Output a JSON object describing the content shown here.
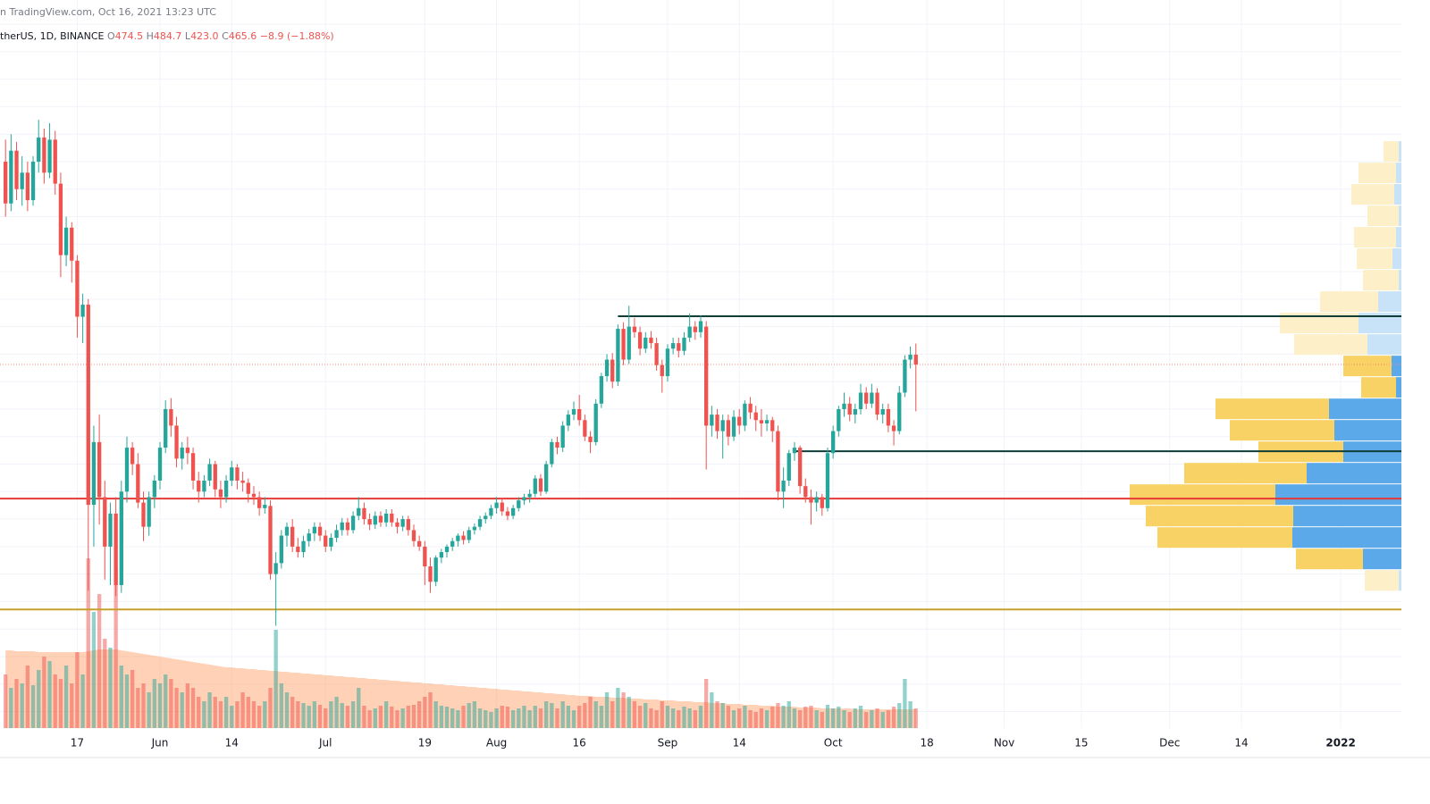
{
  "header": {
    "published": "n TradingView.com, Oct 16, 2021 13:23 UTC",
    "symbol": "therUS, 1D, BINANCE",
    "ohlc": [
      {
        "label": "O",
        "value": "474.5"
      },
      {
        "label": "H",
        "value": "484.7"
      },
      {
        "label": "L",
        "value": "423.0"
      },
      {
        "label": "C",
        "value": "465.6"
      }
    ],
    "change": "−8.9 (−1.88%)"
  },
  "chart_data": {
    "type": "candlestick",
    "xlim": [
      -1,
      253
    ],
    "ylim": [
      135,
      797
    ],
    "xticks": [
      {
        "value": 13,
        "label": "17"
      },
      {
        "value": 28,
        "label": "Jun"
      },
      {
        "value": 41,
        "label": "14"
      },
      {
        "value": 58,
        "label": "Jul"
      },
      {
        "value": 76,
        "label": "19"
      },
      {
        "value": 89,
        "label": "Aug"
      },
      {
        "value": 104,
        "label": "16"
      },
      {
        "value": 120,
        "label": "Sep"
      },
      {
        "value": 133,
        "label": "14"
      },
      {
        "value": 150,
        "label": "Oct"
      },
      {
        "value": 167,
        "label": "18"
      },
      {
        "value": 181,
        "label": "Nov"
      },
      {
        "value": 195,
        "label": "15"
      },
      {
        "value": 211,
        "label": "Dec"
      },
      {
        "value": 224,
        "label": "14"
      },
      {
        "value": 242,
        "label": "2022"
      }
    ],
    "ygrid": [
      150,
      175,
      200,
      225,
      250,
      275,
      300,
      325,
      350,
      375,
      400,
      425,
      450,
      475,
      500,
      525,
      550,
      575,
      600,
      625,
      650,
      675,
      700,
      725,
      750,
      775
    ],
    "grid": true,
    "up_color": "#26a69a",
    "down_color": "#ef5350",
    "candles": [
      [
        650,
        670,
        600,
        612
      ],
      [
        612,
        675,
        605,
        660
      ],
      [
        660,
        668,
        615,
        625
      ],
      [
        625,
        655,
        610,
        640
      ],
      [
        640,
        650,
        605,
        615
      ],
      [
        615,
        655,
        610,
        650
      ],
      [
        650,
        688,
        640,
        672
      ],
      [
        672,
        680,
        630,
        640
      ],
      [
        640,
        685,
        635,
        670
      ],
      [
        670,
        678,
        620,
        630
      ],
      [
        630,
        640,
        545,
        565
      ],
      [
        565,
        600,
        555,
        590
      ],
      [
        590,
        595,
        540,
        560
      ],
      [
        560,
        565,
        490,
        509
      ],
      [
        509,
        530,
        485,
        520
      ],
      [
        520,
        525,
        260,
        338
      ],
      [
        338,
        410,
        300,
        395
      ],
      [
        395,
        420,
        320,
        345
      ],
      [
        345,
        360,
        270,
        300
      ],
      [
        300,
        340,
        265,
        330
      ],
      [
        330,
        345,
        255,
        265
      ],
      [
        265,
        360,
        258,
        350
      ],
      [
        350,
        400,
        340,
        390
      ],
      [
        390,
        395,
        365,
        375
      ],
      [
        375,
        385,
        335,
        340
      ],
      [
        340,
        350,
        305,
        318
      ],
      [
        318,
        350,
        310,
        345
      ],
      [
        345,
        365,
        335,
        360
      ],
      [
        360,
        395,
        352,
        390
      ],
      [
        390,
        433,
        385,
        425
      ],
      [
        425,
        435,
        400,
        410
      ],
      [
        410,
        418,
        372,
        380
      ],
      [
        380,
        395,
        370,
        390
      ],
      [
        390,
        400,
        375,
        385
      ],
      [
        385,
        390,
        352,
        360
      ],
      [
        360,
        368,
        340,
        350
      ],
      [
        350,
        365,
        345,
        360
      ],
      [
        360,
        380,
        355,
        375
      ],
      [
        375,
        378,
        345,
        352
      ],
      [
        352,
        360,
        335,
        345
      ],
      [
        345,
        365,
        340,
        360
      ],
      [
        360,
        378,
        355,
        372
      ],
      [
        372,
        375,
        352,
        360
      ],
      [
        360,
        368,
        350,
        358
      ],
      [
        358,
        362,
        340,
        348
      ],
      [
        348,
        355,
        338,
        345
      ],
      [
        345,
        350,
        328,
        335
      ],
      [
        335,
        345,
        330,
        338
      ],
      [
        337,
        342,
        270,
        275
      ],
      [
        275,
        295,
        228,
        285
      ],
      [
        285,
        315,
        280,
        310
      ],
      [
        310,
        322,
        300,
        318
      ],
      [
        318,
        325,
        295,
        300
      ],
      [
        300,
        308,
        290,
        295
      ],
      [
        295,
        310,
        290,
        305
      ],
      [
        305,
        316,
        300,
        312
      ],
      [
        312,
        322,
        305,
        318
      ],
      [
        318,
        322,
        305,
        310
      ],
      [
        310,
        315,
        295,
        300
      ],
      [
        300,
        312,
        296,
        308
      ],
      [
        308,
        320,
        304,
        315
      ],
      [
        315,
        326,
        310,
        322
      ],
      [
        322,
        326,
        310,
        315
      ],
      [
        315,
        332,
        312,
        328
      ],
      [
        328,
        345,
        324,
        335
      ],
      [
        335,
        340,
        320,
        325
      ],
      [
        325,
        330,
        315,
        320
      ],
      [
        320,
        332,
        316,
        328
      ],
      [
        328,
        332,
        318,
        322
      ],
      [
        322,
        334,
        318,
        330
      ],
      [
        330,
        334,
        318,
        322
      ],
      [
        322,
        326,
        312,
        318
      ],
      [
        318,
        328,
        314,
        325
      ],
      [
        325,
        328,
        310,
        315
      ],
      [
        315,
        320,
        300,
        305
      ],
      [
        305,
        310,
        296,
        300
      ],
      [
        300,
        305,
        265,
        282
      ],
      [
        282,
        290,
        258,
        268
      ],
      [
        268,
        292,
        264,
        290
      ],
      [
        290,
        298,
        285,
        295
      ],
      [
        295,
        302,
        290,
        300
      ],
      [
        300,
        308,
        296,
        305
      ],
      [
        305,
        312,
        300,
        310
      ],
      [
        310,
        314,
        302,
        306
      ],
      [
        306,
        318,
        303,
        315
      ],
      [
        315,
        321,
        311,
        318
      ],
      [
        318,
        328,
        315,
        325
      ],
      [
        325,
        331,
        321,
        328
      ],
      [
        328,
        338,
        325,
        335
      ],
      [
        335,
        345,
        330,
        340
      ],
      [
        340,
        344,
        328,
        332
      ],
      [
        332,
        336,
        324,
        328
      ],
      [
        328,
        338,
        325,
        335
      ],
      [
        335,
        345,
        332,
        342
      ],
      [
        342,
        348,
        338,
        345
      ],
      [
        345,
        352,
        340,
        348
      ],
      [
        348,
        365,
        345,
        362
      ],
      [
        362,
        366,
        346,
        350
      ],
      [
        350,
        378,
        348,
        375
      ],
      [
        375,
        398,
        372,
        395
      ],
      [
        395,
        400,
        384,
        390
      ],
      [
        390,
        414,
        386,
        410
      ],
      [
        410,
        424,
        405,
        420
      ],
      [
        420,
        432,
        415,
        425
      ],
      [
        425,
        438,
        410,
        415
      ],
      [
        415,
        420,
        396,
        400
      ],
      [
        400,
        405,
        385,
        395
      ],
      [
        395,
        434,
        392,
        430
      ],
      [
        430,
        458,
        426,
        455
      ],
      [
        455,
        475,
        450,
        470
      ],
      [
        470,
        476,
        444,
        450
      ],
      [
        450,
        502,
        446,
        498
      ],
      [
        498,
        504,
        465,
        470
      ],
      [
        470,
        519,
        466,
        500
      ],
      [
        500,
        508,
        490,
        495
      ],
      [
        495,
        500,
        474,
        480
      ],
      [
        480,
        495,
        476,
        490
      ],
      [
        490,
        496,
        480,
        485
      ],
      [
        485,
        490,
        460,
        465
      ],
      [
        465,
        470,
        440,
        455
      ],
      [
        455,
        484,
        450,
        480
      ],
      [
        480,
        490,
        475,
        485
      ],
      [
        485,
        490,
        472,
        478
      ],
      [
        478,
        495,
        474,
        490
      ],
      [
        490,
        512,
        486,
        500
      ],
      [
        500,
        505,
        488,
        495
      ],
      [
        495,
        510,
        490,
        505
      ],
      [
        500,
        505,
        370,
        410
      ],
      [
        410,
        428,
        400,
        420
      ],
      [
        420,
        425,
        398,
        405
      ],
      [
        405,
        420,
        380,
        415
      ],
      [
        415,
        420,
        392,
        400
      ],
      [
        400,
        424,
        396,
        418
      ],
      [
        418,
        425,
        402,
        410
      ],
      [
        410,
        433,
        405,
        430
      ],
      [
        430,
        436,
        416,
        422
      ],
      [
        422,
        428,
        405,
        415
      ],
      [
        415,
        425,
        400,
        412
      ],
      [
        412,
        420,
        405,
        415
      ],
      [
        415,
        418,
        395,
        405
      ],
      [
        405,
        410,
        342,
        350
      ],
      [
        350,
        372,
        335,
        360
      ],
      [
        360,
        388,
        355,
        385
      ],
      [
        385,
        395,
        378,
        390
      ],
      [
        390,
        392,
        348,
        355
      ],
      [
        355,
        362,
        340,
        345
      ],
      [
        345,
        352,
        320,
        340
      ],
      [
        340,
        350,
        332,
        345
      ],
      [
        345,
        348,
        328,
        335
      ],
      [
        335,
        390,
        332,
        385
      ],
      [
        385,
        410,
        380,
        405
      ],
      [
        405,
        428,
        400,
        425
      ],
      [
        425,
        440,
        418,
        430
      ],
      [
        430,
        436,
        414,
        420
      ],
      [
        420,
        430,
        412,
        425
      ],
      [
        425,
        448,
        420,
        440
      ],
      [
        440,
        445,
        425,
        430
      ],
      [
        430,
        448,
        426,
        440
      ],
      [
        440,
        444,
        415,
        420
      ],
      [
        420,
        430,
        412,
        425
      ],
      [
        425,
        430,
        404,
        410
      ],
      [
        410,
        415,
        392,
        405
      ],
      [
        405,
        446,
        402,
        440
      ],
      [
        440,
        474,
        436,
        470
      ],
      [
        470,
        482,
        462,
        474.5
      ],
      [
        474.5,
        484.7,
        423,
        465.6
      ]
    ],
    "volume_lim": [
      0,
      200
    ],
    "volume_up_color": "rgba(38,166,154,0.5)",
    "volume_down_color": "rgba(239,83,80,0.5)",
    "volume_ma_color": "rgba(255,152,94,0.45)",
    "volumes": [
      60,
      45,
      55,
      50,
      70,
      48,
      65,
      80,
      75,
      60,
      55,
      70,
      50,
      85,
      60,
      190,
      130,
      150,
      100,
      90,
      180,
      70,
      60,
      65,
      45,
      50,
      40,
      55,
      50,
      60,
      55,
      45,
      40,
      50,
      45,
      35,
      30,
      40,
      35,
      30,
      35,
      25,
      30,
      40,
      35,
      30,
      25,
      30,
      45,
      110,
      50,
      40,
      35,
      30,
      28,
      25,
      30,
      26,
      22,
      30,
      35,
      28,
      25,
      30,
      45,
      25,
      20,
      22,
      25,
      30,
      24,
      20,
      22,
      25,
      26,
      30,
      35,
      40,
      30,
      25,
      24,
      22,
      20,
      25,
      28,
      30,
      22,
      20,
      18,
      22,
      25,
      24,
      20,
      22,
      25,
      20,
      25,
      22,
      30,
      28,
      22,
      30,
      25,
      20,
      25,
      28,
      35,
      30,
      25,
      40,
      30,
      45,
      40,
      35,
      30,
      25,
      28,
      22,
      20,
      30,
      25,
      22,
      20,
      24,
      22,
      20,
      25,
      55,
      40,
      30,
      28,
      25,
      20,
      22,
      25,
      20,
      18,
      22,
      20,
      24,
      28,
      25,
      30,
      22,
      20,
      24,
      25,
      20,
      18,
      26,
      22,
      24,
      20,
      18,
      22,
      25,
      18,
      20,
      22,
      18,
      20,
      24,
      28,
      55,
      30,
      22
    ],
    "volume_ma": [
      87,
      87,
      86,
      86,
      86,
      86,
      85,
      85,
      85,
      85,
      85,
      85,
      85,
      85,
      85,
      86,
      87,
      88,
      88,
      88,
      88,
      87,
      86,
      85,
      84,
      83,
      82,
      81,
      80,
      79,
      78,
      77,
      76,
      75,
      74,
      73,
      72,
      71,
      70,
      69,
      68,
      68,
      67,
      67,
      66,
      66,
      65,
      65,
      64,
      64,
      63,
      63,
      62,
      62,
      61,
      61,
      60,
      60,
      59,
      59,
      58,
      58,
      57,
      57,
      56,
      56,
      55,
      55,
      54,
      54,
      53,
      53,
      52,
      52,
      51,
      51,
      50,
      50,
      49,
      49,
      48,
      48,
      47,
      47,
      46,
      46,
      45,
      45,
      44,
      44,
      43,
      43,
      42,
      42,
      41,
      41,
      40,
      40,
      39,
      39,
      38,
      38,
      37,
      37,
      36,
      36,
      36,
      35,
      35,
      35,
      34,
      34,
      34,
      33,
      33,
      33,
      32,
      32,
      32,
      31,
      31,
      31,
      30,
      30,
      30,
      29,
      29,
      29,
      28,
      28,
      28,
      27,
      27,
      27,
      26,
      26,
      26,
      25,
      25,
      25,
      24,
      24,
      24,
      24,
      23,
      23,
      23,
      23,
      22,
      22,
      22,
      22,
      22,
      22,
      21,
      21,
      21,
      21,
      21,
      21,
      21,
      21,
      21,
      21,
      21,
      21
    ],
    "levels": [
      {
        "value": 509.5,
        "from": 111,
        "color": "#0f3d37"
      },
      {
        "value": 386.7,
        "from": 143,
        "color": "#0f3d37"
      },
      {
        "value": 343.7,
        "from": -1,
        "color": "#e53935"
      },
      {
        "value": 242.8,
        "from": -1,
        "color": "#c9a02c"
      }
    ],
    "close_line_color": "#f08a7e",
    "profile": {
      "bins": [
        669,
        649.5,
        630,
        610.5,
        591,
        571.5,
        552,
        532.5,
        513,
        493.5,
        474,
        454.5,
        435,
        415.5,
        396,
        376.5,
        357,
        337.5,
        318,
        298.5,
        279,
        259.5
      ],
      "up": [
        17,
        42,
        48,
        35,
        47,
        40,
        40,
        65,
        88,
        82,
        54,
        39,
        127,
        117,
        95,
        137,
        163,
        165,
        151,
        75,
        38
      ],
      "down": [
        3,
        6,
        8,
        3,
        6,
        10,
        3,
        26,
        48,
        38,
        11,
        6,
        81,
        75,
        65,
        106,
        141,
        121,
        122,
        43,
        3
      ],
      "value_area": [
        10,
        19
      ],
      "up_color": "#f9d266",
      "down_color": "#5ba9e9",
      "up_color_outside": "#fdefc8",
      "down_color_outside": "#c8e2f8"
    }
  }
}
